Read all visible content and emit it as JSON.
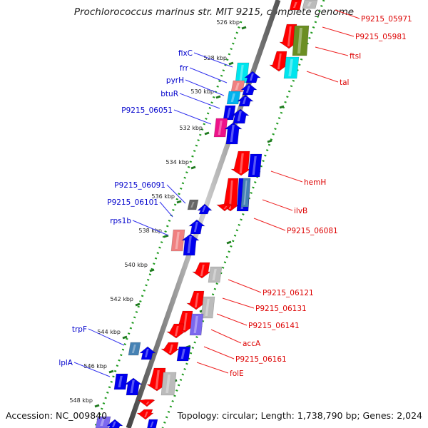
{
  "title": "Prochlorococcus marinus str. MIT 9215, complete genome",
  "accession": "Accession: NC_009840",
  "topology": "Topology: circular; Length: 1,738,790 bp; Genes: 2,024",
  "ticks": [
    {
      "label": "526 kbp"
    },
    {
      "label": "528 kbp"
    },
    {
      "label": "530 kbp"
    },
    {
      "label": "532 kbp"
    },
    {
      "label": "534 kbp"
    },
    {
      "label": "536 kbp"
    },
    {
      "label": "538 kbp"
    },
    {
      "label": "540 kbp"
    },
    {
      "label": "542 kbp"
    },
    {
      "label": "544 kbp"
    },
    {
      "label": "546 kbp"
    },
    {
      "label": "548 kbp"
    }
  ],
  "left_genes": [
    {
      "label": "fixC"
    },
    {
      "label": "frr"
    },
    {
      "label": "pyrH"
    },
    {
      "label": "btuR"
    },
    {
      "label": "P9215_06051"
    },
    {
      "label": "P9215_06091"
    },
    {
      "label": "P9215_06101"
    },
    {
      "label": "rps1b"
    },
    {
      "label": "trpF"
    },
    {
      "label": "lplA"
    }
  ],
  "right_genes": [
    {
      "label": "P9215_05971"
    },
    {
      "label": "P9215_05981"
    },
    {
      "label": "ftsI"
    },
    {
      "label": "tal"
    },
    {
      "label": "hemH"
    },
    {
      "label": "ilvB"
    },
    {
      "label": "P9215_06081"
    },
    {
      "label": "P9215_06121"
    },
    {
      "label": "P9215_06131"
    },
    {
      "label": "P9215_06141"
    },
    {
      "label": "accA"
    },
    {
      "label": "P9215_06161"
    },
    {
      "label": "folE"
    }
  ],
  "colors": {
    "red": "#ff0000",
    "blue": "#0000ee",
    "cyan": "#00e5ee",
    "salmon": "#f08080",
    "skyblue": "#00b2ee",
    "magenta": "#ee1289",
    "olive": "#6b8e23",
    "gray": "#bbbbbb",
    "darkgray": "#666666",
    "lavender": "#7b68ee",
    "steel": "#4682b4",
    "left_label": "#0000cc",
    "right_label": "#dd0000",
    "dots": "#1f9a1f",
    "ticks": "#1f7a1f"
  }
}
